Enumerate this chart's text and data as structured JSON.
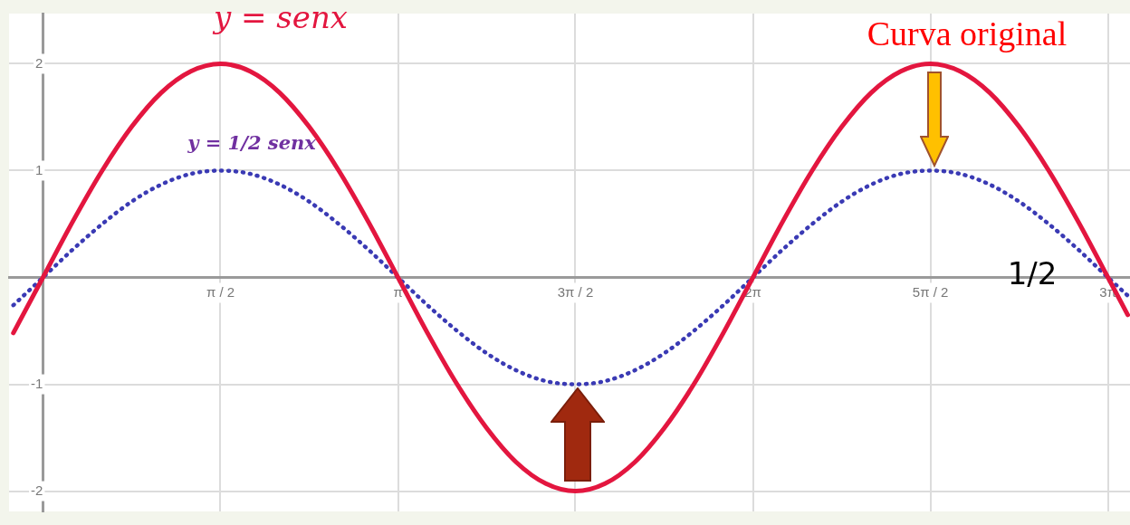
{
  "chart_data": {
    "type": "line",
    "x": [
      -0.262,
      0,
      0.262,
      0.524,
      0.785,
      1.047,
      1.309,
      1.571,
      1.833,
      2.094,
      2.356,
      2.618,
      2.88,
      3.142,
      3.403,
      3.665,
      3.927,
      4.189,
      4.451,
      4.712,
      4.974,
      5.236,
      5.498,
      5.76,
      6.021,
      6.283,
      6.545,
      6.807,
      7.069,
      7.33,
      7.592,
      7.854,
      8.116,
      8.378,
      8.639,
      8.901,
      9.163,
      9.425,
      9.6
    ],
    "series": [
      {
        "color": "#e3163f",
        "line_style": "solid",
        "values": [
          -0.52,
          0,
          0.52,
          1,
          1.41,
          1.73,
          1.93,
          2,
          1.93,
          1.73,
          1.41,
          1,
          0.52,
          0,
          -0.52,
          -1,
          -1.41,
          -1.73,
          -1.93,
          -2,
          -1.93,
          -1.73,
          -1.41,
          -1,
          -0.52,
          0,
          0.52,
          1,
          1.41,
          1.73,
          1.93,
          2,
          1.93,
          1.73,
          1.41,
          1,
          0.52,
          0,
          -0.35
        ]
      },
      {
        "color": "#3a3ab4",
        "line_style": "dotted",
        "values": [
          -0.26,
          0,
          0.26,
          0.5,
          0.71,
          0.87,
          0.97,
          1,
          0.97,
          0.87,
          0.71,
          0.5,
          0.26,
          0,
          -0.26,
          -0.5,
          -0.71,
          -0.87,
          -0.97,
          -1,
          -0.97,
          -0.87,
          -0.71,
          -0.5,
          -0.26,
          0,
          0.26,
          0.5,
          0.71,
          0.87,
          0.97,
          1,
          0.97,
          0.87,
          0.71,
          0.5,
          0.26,
          0,
          -0.17
        ]
      }
    ],
    "xlim": [
      -0.3,
      9.62
    ],
    "ylim": [
      -2.19,
      2.47
    ],
    "xticks": [
      {
        "value": 1.571,
        "label": "π / 2"
      },
      {
        "value": 3.142,
        "label": "π"
      },
      {
        "value": 4.712,
        "label": "3π / 2"
      },
      {
        "value": 6.283,
        "label": "2π"
      },
      {
        "value": 7.854,
        "label": "5π / 2"
      },
      {
        "value": 9.425,
        "label": "3π"
      }
    ],
    "yticks": [
      -2,
      -1,
      1,
      2
    ],
    "grid": true,
    "legend": false,
    "marker": "none",
    "annotations": [
      "y = senx",
      "y = 1/2 senx",
      "Curva original",
      "1/2"
    ]
  }
}
